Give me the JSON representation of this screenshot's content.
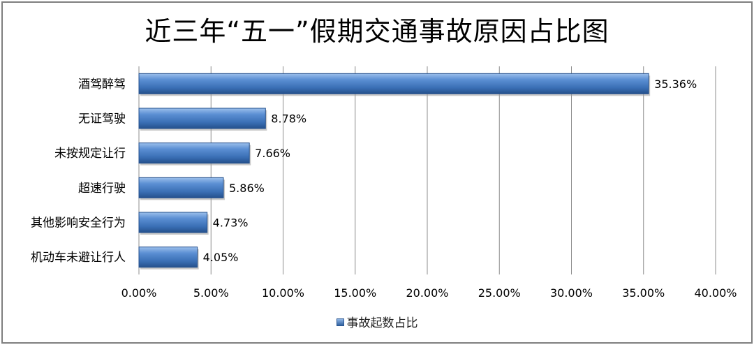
{
  "chart_data": {
    "type": "bar",
    "orientation": "horizontal",
    "title": "近三年“五一”假期交通事故原因占比图",
    "categories": [
      "酒驾醉驾",
      "无证驾驶",
      "未按规定让行",
      "超速行驶",
      "其他影响安全行为",
      "机动车未避让行人"
    ],
    "series": [
      {
        "name": "事故起数占比",
        "values": [
          35.36,
          8.78,
          7.66,
          5.86,
          4.73,
          4.05
        ]
      }
    ],
    "data_labels": [
      "35.36%",
      "8.78%",
      "7.66%",
      "5.86%",
      "4.73%",
      "4.05%"
    ],
    "x_ticks": [
      "0.00%",
      "5.00%",
      "10.00%",
      "15.00%",
      "20.00%",
      "25.00%",
      "30.00%",
      "35.00%",
      "40.00%"
    ],
    "xlim": [
      0,
      40
    ],
    "grid": true,
    "legend": "bottom",
    "bar_color": "#3a6fb5"
  }
}
